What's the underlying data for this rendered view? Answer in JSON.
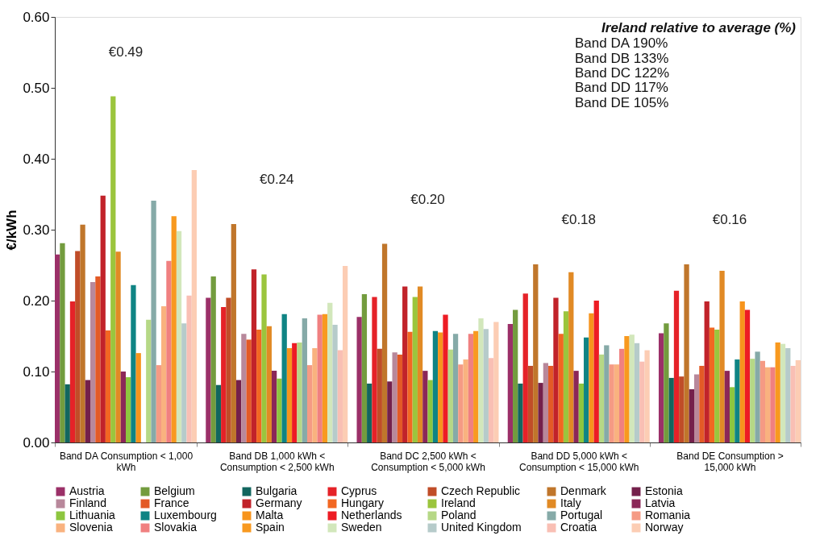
{
  "chart_data": {
    "type": "bar",
    "ylabel": "€/kWh",
    "categories": [
      "Band DA Consumption < 1,000 kWh",
      "Band DB 1,000 kWh < Consumption < 2,500 kWh",
      "Band DC 2,500 kWh < Consumption < 5,000 kWh",
      "Band DD 5,000 kWh < Consumption < 15,000 kWh",
      "Band DE Consumption > 15,000 kWh"
    ],
    "ylim": [
      0,
      0.6
    ],
    "yticks": [
      {
        "value": 0,
        "label": "0.00"
      },
      {
        "value": 0.1,
        "label": "0.10"
      },
      {
        "value": 0.2,
        "label": "0.20"
      },
      {
        "value": 0.3,
        "label": "0.30"
      },
      {
        "value": 0.4,
        "label": "0.40"
      },
      {
        "value": 0.5,
        "label": "0.50"
      },
      {
        "value": 0.6,
        "label": "0.60"
      }
    ],
    "grid": false,
    "legend": "bottom",
    "series": [
      {
        "name": "Austria",
        "color": "#9b3068",
        "values": [
          0.265,
          0.204,
          0.177,
          0.167,
          0.154
        ]
      },
      {
        "name": "Belgium",
        "color": "#739c3e",
        "values": [
          0.281,
          0.234,
          0.209,
          0.187,
          0.168
        ]
      },
      {
        "name": "Bulgaria",
        "color": "#12665f",
        "values": [
          0.082,
          0.081,
          0.083,
          0.083,
          0.091
        ]
      },
      {
        "name": "Cyprus",
        "color": "#e52228",
        "values": [
          0.199,
          0.191,
          0.205,
          0.21,
          0.214
        ]
      },
      {
        "name": "Czech Republic",
        "color": "#c04d28",
        "values": [
          0.27,
          0.204,
          0.132,
          0.108,
          0.093
        ]
      },
      {
        "name": "Denmark",
        "color": "#c0762b",
        "values": [
          0.307,
          0.308,
          0.28,
          0.251,
          0.251
        ]
      },
      {
        "name": "Estonia",
        "color": "#74204b",
        "values": [
          0.088,
          0.088,
          0.086,
          0.084,
          0.075
        ]
      },
      {
        "name": "Finland",
        "color": "#b8889b",
        "values": [
          0.226,
          0.153,
          0.127,
          0.112,
          0.096
        ]
      },
      {
        "name": "France",
        "color": "#e35a26",
        "values": [
          0.234,
          0.145,
          0.124,
          0.108,
          0.108
        ]
      },
      {
        "name": "Germany",
        "color": "#c1232a",
        "values": [
          0.348,
          0.244,
          0.22,
          0.204,
          0.199
        ]
      },
      {
        "name": "Hungary",
        "color": "#f26722",
        "values": [
          0.158,
          0.159,
          0.156,
          0.153,
          0.162
        ]
      },
      {
        "name": "Ireland",
        "color": "#9bc53d",
        "values": [
          0.488,
          0.237,
          0.205,
          0.185,
          0.159
        ]
      },
      {
        "name": "Italy",
        "color": "#e18a25",
        "values": [
          0.269,
          0.164,
          0.22,
          0.24,
          0.242
        ]
      },
      {
        "name": "Latvia",
        "color": "#8b2758",
        "values": [
          0.1,
          0.101,
          0.101,
          0.101,
          0.101
        ]
      },
      {
        "name": "Lithuania",
        "color": "#8dc63f",
        "values": [
          0.092,
          0.09,
          0.088,
          0.083,
          0.078
        ]
      },
      {
        "name": "Luxembourg",
        "color": "#0f8484",
        "values": [
          0.222,
          0.181,
          0.157,
          0.148,
          0.117
        ]
      },
      {
        "name": "Malta",
        "color": "#f7941d",
        "values": [
          0.126,
          0.133,
          0.155,
          0.182,
          0.199
        ]
      },
      {
        "name": "Netherlands",
        "color": "#ed1c24",
        "values": [
          null,
          0.14,
          0.18,
          0.2,
          0.187
        ]
      },
      {
        "name": "Poland",
        "color": "#b6d886",
        "values": [
          0.173,
          0.141,
          0.131,
          0.124,
          0.118
        ]
      },
      {
        "name": "Portugal",
        "color": "#86aaa8",
        "values": [
          0.341,
          0.175,
          0.153,
          0.137,
          0.128
        ]
      },
      {
        "name": "Romania",
        "color": "#f59a84",
        "values": [
          0.109,
          0.109,
          0.11,
          0.11,
          0.115
        ]
      },
      {
        "name": "Slovenia",
        "color": "#f9b27f",
        "values": [
          0.192,
          0.133,
          0.117,
          0.11,
          0.106
        ]
      },
      {
        "name": "Slovakia",
        "color": "#f08080",
        "values": [
          0.256,
          0.18,
          0.153,
          0.132,
          0.106
        ]
      },
      {
        "name": "Spain",
        "color": "#f8991f",
        "values": [
          0.319,
          0.181,
          0.157,
          0.15,
          0.141
        ]
      },
      {
        "name": "Sweden",
        "color": "#d2e7bb",
        "values": [
          0.298,
          0.197,
          0.175,
          0.152,
          0.139
        ]
      },
      {
        "name": "United Kingdom",
        "color": "#b6cbca",
        "values": [
          0.168,
          0.166,
          0.16,
          0.14,
          0.133
        ]
      },
      {
        "name": "Croatia",
        "color": "#f9bfb4",
        "values": [
          0.207,
          0.13,
          0.119,
          0.114,
          0.108
        ]
      },
      {
        "name": "Norway",
        "color": "#fccdb4",
        "values": [
          0.384,
          0.249,
          0.17,
          0.13,
          0.116
        ]
      }
    ],
    "annotations": [
      "€0.49",
      "€0.24",
      "€0.20",
      "€0.18",
      "€0.16",
      "Ireland relative to average (%)",
      "Band DA 190%",
      "Band DB 133%",
      "Band DC 122%",
      "Band DD 117%",
      "Band DE 105%"
    ]
  }
}
